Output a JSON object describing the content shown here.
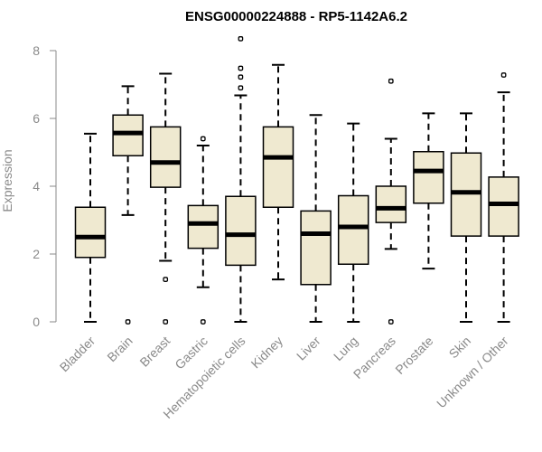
{
  "chart_data": {
    "type": "boxplot",
    "title": "ENSG00000224888 - RP5-1142A6.2",
    "xlabel": "",
    "ylabel": "Expression",
    "ylim": [
      0,
      8.4
    ],
    "yticks": [
      0,
      2,
      4,
      6,
      8
    ],
    "colors": {
      "box_fill": "#efe9d0",
      "box_stroke": "#000000",
      "axis": "#8a8a8a",
      "median": "#000000"
    },
    "categories": [
      "Bladder",
      "Brain",
      "Breast",
      "Gastric",
      "Hematopoietic cells",
      "Kidney",
      "Liver",
      "Lung",
      "Pancreas",
      "Prostate",
      "Skin",
      "Unknown / Other"
    ],
    "boxes": [
      {
        "name": "Bladder",
        "whisker_low": 0.0,
        "q1": 1.9,
        "median": 2.5,
        "q3": 3.38,
        "whisker_high": 5.55,
        "outliers": []
      },
      {
        "name": "Brain",
        "whisker_low": 3.15,
        "q1": 4.9,
        "median": 5.57,
        "q3": 6.1,
        "whisker_high": 6.95,
        "outliers": [
          0.0
        ]
      },
      {
        "name": "Breast",
        "whisker_low": 1.8,
        "q1": 3.97,
        "median": 4.7,
        "q3": 5.75,
        "whisker_high": 7.32,
        "outliers": [
          1.25,
          0.0
        ]
      },
      {
        "name": "Gastric",
        "whisker_low": 1.02,
        "q1": 2.17,
        "median": 2.9,
        "q3": 3.43,
        "whisker_high": 5.2,
        "outliers": [
          5.4,
          0.0
        ]
      },
      {
        "name": "Hematopoietic cells",
        "whisker_low": 0.0,
        "q1": 1.67,
        "median": 2.57,
        "q3": 3.7,
        "whisker_high": 6.68,
        "outliers": [
          6.9,
          7.22,
          7.48,
          8.35
        ]
      },
      {
        "name": "Kidney",
        "whisker_low": 1.25,
        "q1": 3.38,
        "median": 4.85,
        "q3": 5.75,
        "whisker_high": 7.58,
        "outliers": []
      },
      {
        "name": "Liver",
        "whisker_low": 0.0,
        "q1": 1.1,
        "median": 2.6,
        "q3": 3.27,
        "whisker_high": 6.1,
        "outliers": []
      },
      {
        "name": "Lung",
        "whisker_low": 0.0,
        "q1": 1.7,
        "median": 2.8,
        "q3": 3.72,
        "whisker_high": 5.85,
        "outliers": []
      },
      {
        "name": "Pancreas",
        "whisker_low": 2.15,
        "q1": 2.93,
        "median": 3.35,
        "q3": 4.0,
        "whisker_high": 5.4,
        "outliers": [
          7.1,
          0.0
        ]
      },
      {
        "name": "Prostate",
        "whisker_low": 1.57,
        "q1": 3.5,
        "median": 4.45,
        "q3": 5.02,
        "whisker_high": 6.15,
        "outliers": []
      },
      {
        "name": "Skin",
        "whisker_low": 0.0,
        "q1": 2.53,
        "median": 3.82,
        "q3": 4.98,
        "whisker_high": 6.15,
        "outliers": []
      },
      {
        "name": "Unknown / Other",
        "whisker_low": 0.0,
        "q1": 2.53,
        "median": 3.48,
        "q3": 4.27,
        "whisker_high": 6.77,
        "outliers": [
          7.28
        ]
      }
    ]
  }
}
